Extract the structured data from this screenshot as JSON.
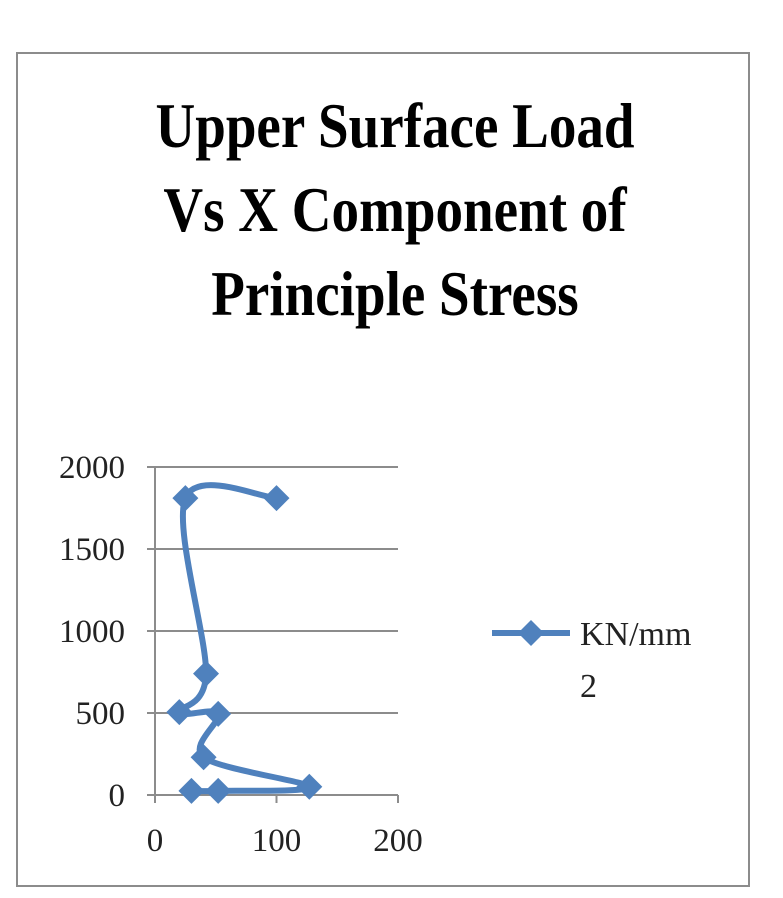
{
  "chart_data": {
    "type": "line",
    "title": "Upper Surface Load Vs X Component of Principle Stress",
    "xlabel": "",
    "ylabel": "",
    "xlim": [
      0,
      200
    ],
    "ylim": [
      0,
      2000
    ],
    "x_ticks": [
      "0",
      "100",
      "200"
    ],
    "y_ticks": [
      "0",
      "500",
      "1000",
      "1500",
      "2000"
    ],
    "grid": "horizontal",
    "legend_position": "right",
    "smooth": true,
    "series": [
      {
        "name": "KN/mm2",
        "color": "#4f81bd",
        "marker": "diamond",
        "points": [
          {
            "x": 100,
            "y": 1810
          },
          {
            "x": 25,
            "y": 1810
          },
          {
            "x": 42,
            "y": 740
          },
          {
            "x": 20,
            "y": 505
          },
          {
            "x": 52,
            "y": 495
          },
          {
            "x": 40,
            "y": 230
          },
          {
            "x": 127,
            "y": 50
          },
          {
            "x": 52,
            "y": 25
          },
          {
            "x": 30,
            "y": 25
          }
        ]
      }
    ]
  }
}
